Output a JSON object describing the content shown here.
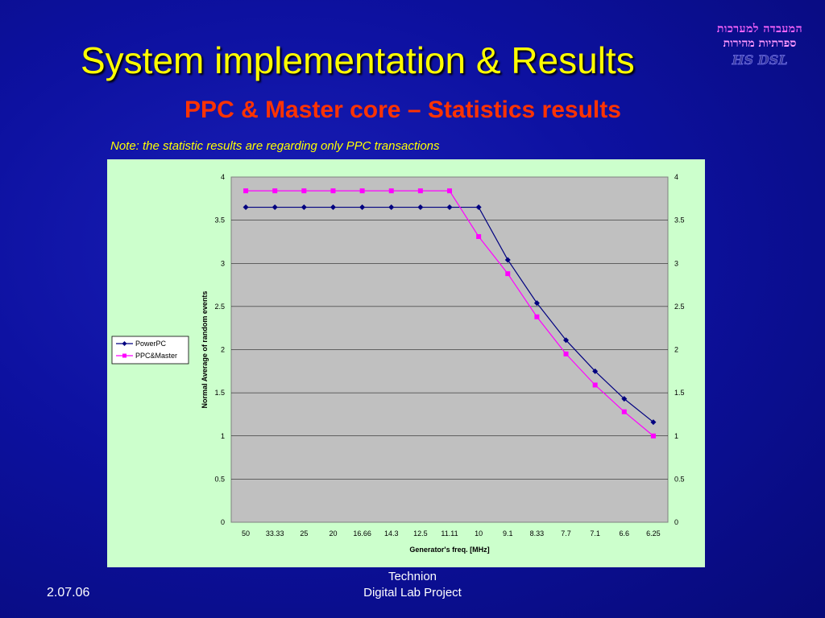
{
  "slide": {
    "title": "System implementation & Results",
    "subtitle": "PPC & Master core – Statistics results",
    "note": "Note: the statistic results are regarding only PPC transactions"
  },
  "logo": {
    "line1": "המעבדה למערכות",
    "line2": "ספרתיות מהירות",
    "brand": "HS DSL"
  },
  "footer": {
    "date": "2.07.06",
    "line1": "Technion",
    "line2": "Digital Lab Project"
  },
  "colors": {
    "powerpc": "#000080",
    "ppc_master": "#ff00ff",
    "plot_bg": "#c0c0c0",
    "chart_bg": "#ccffcc"
  },
  "chart_data": {
    "type": "line",
    "title": "",
    "xlabel": "Generator's freq. [MHz]",
    "ylabel": "Normal Average of random events",
    "categories": [
      "50",
      "33.33",
      "25",
      "20",
      "16.66",
      "14.3",
      "12.5",
      "11.11",
      "10",
      "9.1",
      "8.33",
      "7.7",
      "7.1",
      "6.6",
      "6.25"
    ],
    "ylim": [
      0,
      4
    ],
    "yticks": [
      "0",
      "0.5",
      "1",
      "1.5",
      "2",
      "2.5",
      "3",
      "3.5",
      "4"
    ],
    "secondary_y_axis": true,
    "grid": true,
    "legend_position": "left",
    "series": [
      {
        "name": "PowerPC",
        "marker": "diamond",
        "values": [
          3.65,
          3.65,
          3.65,
          3.65,
          3.65,
          3.65,
          3.65,
          3.65,
          3.65,
          3.04,
          2.54,
          2.11,
          1.75,
          1.43,
          1.16
        ]
      },
      {
        "name": "PPC&Master",
        "marker": "square",
        "values": [
          3.84,
          3.84,
          3.84,
          3.84,
          3.84,
          3.84,
          3.84,
          3.84,
          3.31,
          2.88,
          2.38,
          1.95,
          1.59,
          1.28,
          1.0
        ]
      }
    ]
  }
}
